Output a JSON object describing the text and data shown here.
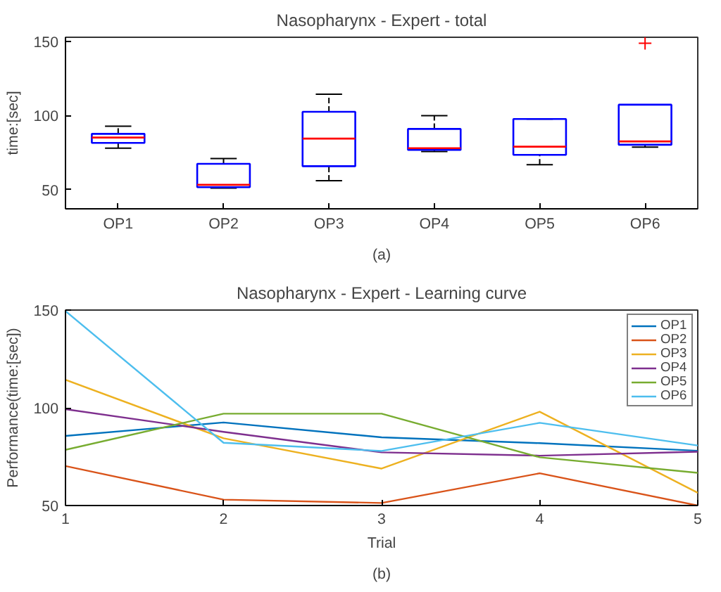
{
  "chart_data": [
    {
      "type": "box",
      "title": "Nasopharynx - Expert - total",
      "ylabel": "time:[sec]",
      "annotations": [
        "(a)"
      ],
      "categories": [
        "OP1",
        "OP2",
        "OP3",
        "OP4",
        "OP5",
        "OP6"
      ],
      "ylim": [
        37,
        153
      ],
      "yticks": [
        50,
        100,
        150
      ],
      "grid": false,
      "series": [
        {
          "color": "#0000ff",
          "boxes": [
            {
              "low": 78,
              "q1": 81.6,
              "median": 85.2,
              "q3": 87.7,
              "high": 92.9
            },
            {
              "low": 51,
              "q1": 51.6,
              "median": 53.2,
              "q3": 67.4,
              "high": 71
            },
            {
              "low": 56,
              "q1": 65.8,
              "median": 84.5,
              "q3": 102.6,
              "high": 114.5
            },
            {
              "low": 75.8,
              "q1": 76.8,
              "median": 78,
              "q3": 91,
              "high": 100
            },
            {
              "low": 66.8,
              "q1": 73.5,
              "median": 79,
              "q3": 97.7,
              "high": 97.7
            },
            {
              "low": 78.7,
              "q1": 80.3,
              "median": 82.6,
              "q3": 107.4,
              "high": 107.4,
              "outliers": [
                149
              ]
            }
          ]
        }
      ]
    },
    {
      "type": "line",
      "title": "Nasopharynx - Expert - Learning curve",
      "xlabel": "Trial",
      "ylabel": "Performance(time:[sec])",
      "annotations": [
        "(b)"
      ],
      "x": [
        1,
        2,
        3,
        4,
        5
      ],
      "xlim": [
        1,
        5
      ],
      "xticks": [
        1,
        2,
        3,
        4,
        5
      ],
      "ylim": [
        50,
        150
      ],
      "yticks": [
        50,
        100,
        150
      ],
      "grid": false,
      "legend": "top right",
      "series": [
        {
          "name": "OP1",
          "color": "#0072bd",
          "values": [
            85.6,
            92.5,
            84.9,
            81.9,
            78
          ]
        },
        {
          "name": "OP2",
          "color": "#d95319",
          "values": [
            70.2,
            53,
            51.3,
            66.5,
            50
          ]
        },
        {
          "name": "OP3",
          "color": "#edb120",
          "values": [
            114.3,
            84.4,
            68.9,
            98,
            56.5
          ]
        },
        {
          "name": "OP4",
          "color": "#7e2f8e",
          "values": [
            99.3,
            87.7,
            77.2,
            75.5,
            77.5
          ]
        },
        {
          "name": "OP5",
          "color": "#77ac30",
          "values": [
            78.5,
            97,
            97,
            74.7,
            66.7
          ]
        },
        {
          "name": "OP6",
          "color": "#4dbeee",
          "values": [
            149.5,
            82.1,
            77.9,
            92.3,
            80.7
          ]
        }
      ]
    }
  ]
}
